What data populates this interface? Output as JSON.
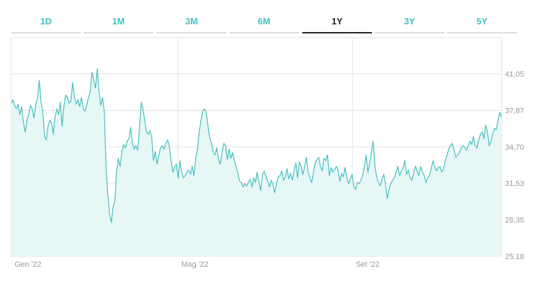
{
  "colors": {
    "accent": "#45bfbf",
    "fill": "#e6f7f6",
    "grid": "#e2e2e2",
    "axis_text": "#999999",
    "active_tab_text": "#222222",
    "active_tab_line": "#222222",
    "inactive_tab_line": "#dcdcdc"
  },
  "tabs": {
    "active_index": 4,
    "items": [
      {
        "label": "1D"
      },
      {
        "label": "1M"
      },
      {
        "label": "3M"
      },
      {
        "label": "6M"
      },
      {
        "label": "1Y"
      },
      {
        "label": "3Y"
      },
      {
        "label": "5Y"
      }
    ]
  },
  "chart_data": {
    "type": "area",
    "yticks": [
      25.18,
      28.35,
      31.53,
      34.7,
      37.87,
      41.05
    ],
    "ytick_labels": [
      "25,18",
      "28,35",
      "31,53",
      "34,70",
      "37,87",
      "41,05"
    ],
    "ylim": [
      25.18,
      44.2
    ],
    "xlim": [
      0,
      250
    ],
    "xticks": [
      {
        "x": 0,
        "label": "Gen '22"
      },
      {
        "x": 85,
        "label": "Mag '22"
      },
      {
        "x": 174,
        "label": "Set '22"
      }
    ],
    "grid": true,
    "values": [
      38.5,
      38.8,
      38.3,
      38.0,
      38.4,
      37.5,
      38.2,
      36.8,
      36.0,
      37.0,
      37.5,
      38.3,
      38.0,
      37.2,
      38.4,
      39.0,
      40.5,
      38.6,
      37.8,
      35.6,
      35.3,
      36.5,
      37.0,
      36.8,
      35.8,
      37.3,
      38.0,
      37.5,
      38.6,
      36.5,
      38.2,
      39.2,
      39.0,
      38.5,
      38.7,
      40.3,
      39.0,
      38.4,
      38.8,
      38.2,
      39.0,
      38.0,
      37.8,
      38.3,
      39.0,
      39.5,
      41.2,
      40.5,
      39.8,
      41.5,
      39.5,
      38.3,
      39.0,
      37.8,
      33.0,
      30.5,
      28.9,
      28.1,
      29.5,
      30.0,
      32.5,
      33.7,
      33.0,
      34.3,
      34.9,
      34.6,
      35.2,
      35.4,
      36.4,
      35.0,
      34.5,
      34.8,
      34.4,
      36.3,
      38.6,
      38.0,
      37.0,
      36.0,
      35.8,
      36.1,
      35.5,
      33.5,
      34.3,
      33.2,
      34.0,
      34.6,
      34.8,
      34.5,
      35.0,
      35.3,
      34.8,
      33.5,
      32.5,
      32.9,
      33.2,
      32.0,
      33.5,
      32.5,
      32.0,
      32.2,
      32.5,
      32.7,
      32.3,
      33.0,
      32.2,
      33.7,
      34.5,
      36.0,
      37.0,
      37.8,
      38.0,
      37.7,
      36.5,
      35.5,
      35.0,
      34.2,
      34.0,
      34.6,
      33.6,
      33.2,
      34.2,
      35.0,
      34.8,
      33.6,
      34.5,
      33.7,
      34.2,
      33.5,
      33.0,
      32.4,
      31.7,
      31.6,
      31.2,
      31.5,
      31.3,
      31.6,
      31.9,
      31.2,
      32.0,
      31.6,
      32.5,
      31.6,
      30.9,
      32.3,
      32.6,
      32.1,
      31.7,
      31.2,
      31.8,
      31.4,
      30.7,
      31.5,
      32.1,
      32.2,
      32.6,
      31.8,
      32.1,
      32.8,
      31.9,
      32.4,
      31.8,
      32.6,
      33.3,
      32.0,
      33.4,
      33.0,
      32.3,
      33.0,
      33.8,
      32.5,
      32.0,
      31.6,
      32.5,
      33.3,
      33.6,
      33.8,
      33.0,
      32.6,
      33.7,
      33.5,
      34.0,
      32.2,
      32.9,
      32.5,
      32.7,
      33.0,
      32.7,
      31.7,
      32.4,
      32.1,
      32.9,
      32.0,
      31.5,
      31.9,
      32.3,
      31.2,
      31.0,
      31.6,
      31.5,
      31.8,
      32.2,
      33.0,
      34.0,
      32.5,
      33.3,
      34.3,
      35.2,
      33.0,
      32.1,
      31.6,
      31.3,
      31.9,
      32.3,
      31.5,
      30.2,
      31.0,
      31.5,
      31.8,
      32.0,
      32.5,
      33.0,
      32.2,
      32.6,
      32.9,
      33.5,
      32.3,
      32.7,
      32.0,
      31.8,
      32.5,
      33.0,
      32.6,
      32.2,
      33.0,
      32.5,
      32.2,
      31.6,
      32.0,
      32.2,
      32.8,
      33.5,
      33.0,
      32.6,
      32.9,
      33.0,
      32.5,
      32.8,
      33.5,
      34.0,
      34.5,
      34.8,
      35.0,
      34.4,
      33.8,
      34.0,
      34.2,
      34.6,
      34.8,
      34.7,
      34.4,
      34.8,
      35.2,
      34.9,
      35.6,
      34.8,
      34.6,
      35.3,
      35.8,
      36.0,
      35.4,
      36.6,
      36.0,
      34.8,
      35.2,
      35.9,
      36.3,
      36.2,
      37.0,
      37.7,
      37.3
    ]
  }
}
